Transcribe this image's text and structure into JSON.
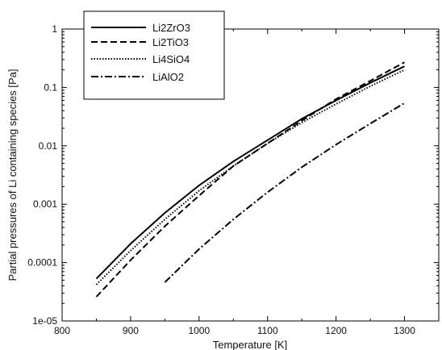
{
  "chart_data": {
    "type": "line",
    "xlabel": "Temperature [K]",
    "ylabel": "Partial pressures of Li containing species [Pa]",
    "xlim": [
      800,
      1350
    ],
    "ylim": [
      1e-05,
      1
    ],
    "yscale": "log",
    "grid": false,
    "legend_position": "top-left",
    "x_ticks": [
      800,
      900,
      1000,
      1100,
      1200,
      1300
    ],
    "x_tick_labels": [
      "800",
      "900",
      "1000",
      "1100",
      "1200",
      "1300"
    ],
    "y_ticks": [
      1e-05,
      0.0001,
      0.001,
      0.01,
      0.1,
      1
    ],
    "y_tick_labels": [
      "1e-05",
      "0.0001",
      "0.001",
      "0.01",
      "0.1",
      "1"
    ],
    "series": [
      {
        "name": "Li2ZrO3",
        "line_style": "solid",
        "x": [
          850,
          900,
          950,
          1000,
          1050,
          1100,
          1150,
          1200,
          1250,
          1300
        ],
        "y": [
          5.3e-05,
          0.00021,
          0.00071,
          0.0021,
          0.0054,
          0.0125,
          0.029,
          0.06,
          0.12,
          0.23
        ]
      },
      {
        "name": "Li2TiO3",
        "line_style": "dashed",
        "x": [
          850,
          900,
          950,
          1000,
          1050,
          1100,
          1150,
          1200,
          1250,
          1300
        ],
        "y": [
          2.6e-05,
          0.00011,
          0.00042,
          0.0014,
          0.0045,
          0.011,
          0.027,
          0.063,
          0.13,
          0.27
        ]
      },
      {
        "name": "Li4SiO4",
        "line_style": "dotted",
        "x": [
          850,
          900,
          950,
          1000,
          1050,
          1100,
          1150,
          1200,
          1250,
          1300
        ],
        "y": [
          4.2e-05,
          0.00016,
          0.00055,
          0.0017,
          0.0045,
          0.011,
          0.025,
          0.052,
          0.105,
          0.2
        ]
      },
      {
        "name": "LiAlO2",
        "line_style": "dashdot",
        "x": [
          950,
          1000,
          1050,
          1100,
          1150,
          1200,
          1250,
          1300
        ],
        "y": [
          4.6e-05,
          0.00017,
          0.00055,
          0.0016,
          0.0043,
          0.0105,
          0.024,
          0.054
        ]
      }
    ]
  }
}
